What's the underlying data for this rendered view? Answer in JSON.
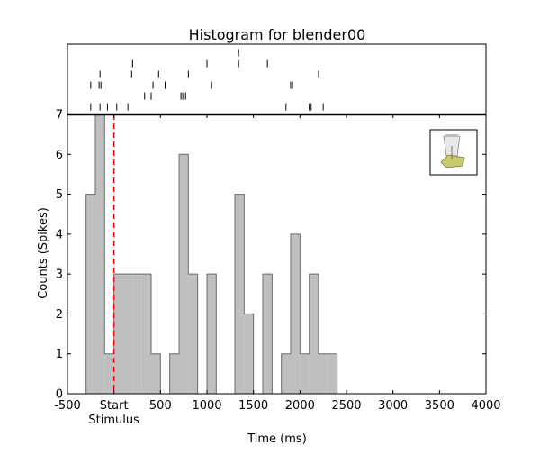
{
  "chart_data": {
    "type": "histogram",
    "title": "Histogram for blender00",
    "xlabel": "Time (ms)",
    "ylabel": "Counts (Spikes)",
    "xlim": [
      -500,
      4000
    ],
    "ylim": [
      0,
      7
    ],
    "xticks": [
      -500,
      0,
      500,
      1000,
      1500,
      2000,
      2500,
      3000,
      3500,
      4000
    ],
    "xtick_labels": [
      "-500",
      "Start",
      "500",
      "1000",
      "1500",
      "2000",
      "2500",
      "3000",
      "3500",
      "4000"
    ],
    "xtick_sublabel": "Stimulus",
    "yticks": [
      0,
      1,
      2,
      3,
      4,
      5,
      6,
      7
    ],
    "stimulus_line_x": 0,
    "bin_width": 100,
    "bin_starts": [
      -300,
      -200,
      -100,
      0,
      100,
      200,
      300,
      400,
      500,
      600,
      700,
      800,
      900,
      1000,
      1100,
      1200,
      1300,
      1400,
      1500,
      1600,
      1700,
      1800,
      1900,
      2000,
      2100,
      2200,
      2300
    ],
    "counts": [
      5,
      7,
      1,
      3,
      3,
      3,
      3,
      1,
      0,
      1,
      6,
      3,
      0,
      3,
      0,
      0,
      5,
      2,
      0,
      3,
      0,
      1,
      4,
      1,
      3,
      1,
      1
    ],
    "raster": [
      [
        -250,
        -150,
        -70,
        30,
        150,
        1850,
        2100,
        2120,
        2250
      ],
      [
        330,
        400,
        720,
        740,
        770
      ],
      [
        -250,
        -160,
        -140,
        420,
        550,
        1050,
        1900,
        1920
      ],
      [
        -150,
        190,
        480,
        800,
        2200
      ],
      [
        200,
        1000,
        1340,
        1650
      ],
      [
        1340
      ]
    ],
    "grid": false,
    "legend": "none"
  },
  "colors": {
    "bar_fill": "#bfbfbf",
    "bar_edge": "#6b6b6b",
    "stimulus_line": "#ff0000",
    "axis": "#000000"
  },
  "inset_icon": "blender-icon"
}
